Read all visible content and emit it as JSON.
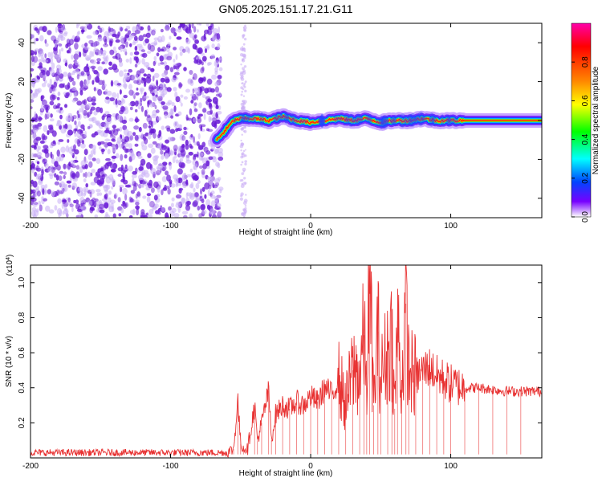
{
  "figure_title": "GN05.2025.151.17.21.G11",
  "colors": {
    "snr_line": "#e83232",
    "scatter_purple": "#6a1bd6",
    "scatter_faint": "#c9aef5",
    "colormap": [
      "#ff00aa",
      "#ff0000",
      "#ff8800",
      "#ffff00",
      "#00ff00",
      "#00ffff",
      "#0044ff",
      "#7700ff",
      "#ffffff"
    ]
  },
  "chart_data": [
    {
      "type": "heatmap",
      "title": "GN05.2025.151.17.21.G11",
      "xlabel": "Height of straight line (km)",
      "ylabel": "Frequency (Hz)",
      "xlim": [
        -200,
        165
      ],
      "ylim": [
        -50,
        50
      ],
      "xticks": [
        -200,
        -100,
        0,
        100
      ],
      "xtick_labels": [
        "-200",
        "-100",
        "0",
        "100"
      ],
      "yticks": [
        -40,
        -20,
        0,
        20,
        40
      ],
      "ytick_labels": [
        "-40",
        "-20",
        "0",
        "20",
        "40"
      ],
      "grid": false,
      "noise_region_x": [
        -200,
        -50
      ],
      "signal_track": {
        "x": [
          -67,
          -62,
          -55,
          -50,
          -40,
          -30,
          -20,
          -10,
          0,
          10,
          20,
          30,
          40,
          50,
          60,
          70,
          80,
          90,
          100,
          110,
          120,
          130,
          140,
          150,
          165
        ],
        "y": [
          -10,
          -6,
          0,
          1,
          1,
          0,
          2,
          0,
          -1,
          0,
          1,
          0,
          1,
          -1,
          0,
          0,
          1,
          0,
          0,
          0,
          0,
          0,
          0,
          0,
          0
        ]
      },
      "colorbar": {
        "label": "Normalized spectral amplitude",
        "range": [
          0,
          1
        ],
        "ticks": [
          0.0,
          0.2,
          0.4,
          0.6,
          0.8
        ],
        "tick_labels": [
          "0.0",
          "0.2",
          "0.4",
          "0.6",
          "0.8"
        ]
      }
    },
    {
      "type": "line",
      "xlabel": "Height of straight line (km)",
      "ylabel": "SNR (10 * v/v)",
      "y_multiplier_label": "(x10",
      "y_multiplier_exp": "4",
      "y_multiplier_close": ")",
      "xlim": [
        -200,
        165
      ],
      "ylim": [
        0,
        1.1
      ],
      "xticks": [
        -200,
        -100,
        0,
        100
      ],
      "xtick_labels": [
        "-200",
        "-100",
        "0",
        "100"
      ],
      "yticks": [
        0.2,
        0.4,
        0.6,
        0.8,
        1.0
      ],
      "ytick_labels": [
        "0.2",
        "0.4",
        "0.6",
        "0.8",
        "1.0"
      ],
      "grid": false,
      "series": [
        {
          "x": [
            -200,
            -100,
            -60,
            -55,
            -52,
            -50,
            -48,
            -45,
            -40,
            -38,
            -35,
            -30,
            -28,
            -25,
            -20,
            -15,
            -10,
            -5,
            0,
            5,
            10,
            15,
            20,
            25,
            30,
            35,
            38,
            40,
            42,
            45,
            48,
            50,
            55,
            58,
            60,
            62,
            65,
            68,
            70,
            75,
            80,
            85,
            90,
            95,
            100,
            110,
            120,
            130,
            140,
            150,
            165
          ],
          "y": [
            0.03,
            0.03,
            0.03,
            0.05,
            0.33,
            0.08,
            0.06,
            0.05,
            0.3,
            0.1,
            0.2,
            0.38,
            0.1,
            0.25,
            0.3,
            0.28,
            0.32,
            0.3,
            0.35,
            0.32,
            0.4,
            0.36,
            0.45,
            0.3,
            0.5,
            0.48,
            0.7,
            0.4,
            1.08,
            0.3,
            0.72,
            0.45,
            0.62,
            0.7,
            0.28,
            0.78,
            0.4,
            0.88,
            0.5,
            0.46,
            0.5,
            0.52,
            0.47,
            0.45,
            0.42,
            0.4,
            0.4,
            0.39,
            0.38,
            0.38,
            0.38
          ]
        }
      ]
    }
  ]
}
